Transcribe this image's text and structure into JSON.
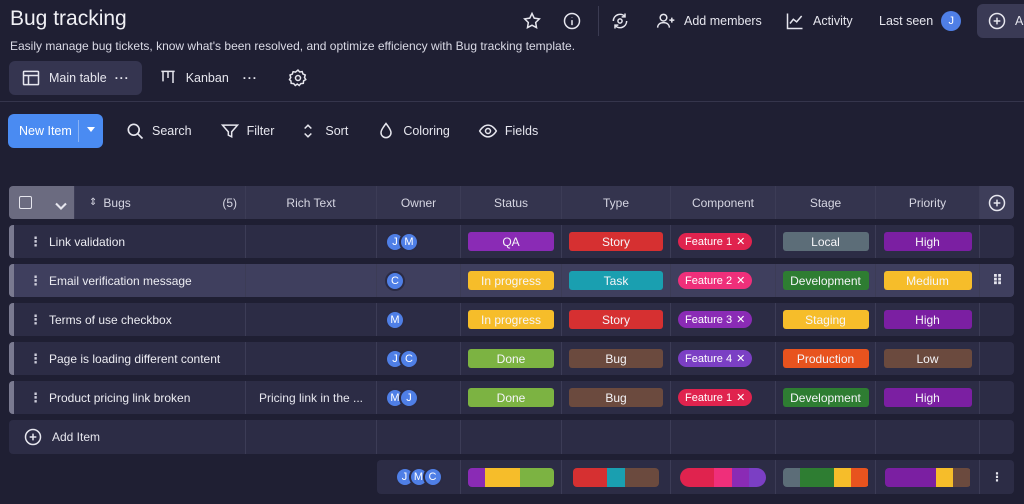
{
  "header": {
    "title": "Bug tracking",
    "subtitle": "Easily manage bug tickets, know what's been resolved, and optimize efficiency with Bug tracking template.",
    "add_members": "Add members",
    "activity": "Activity",
    "last_seen": "Last seen",
    "last_seen_avatar": "J",
    "add_button_partial": "Ac"
  },
  "views": {
    "main_table": "Main table",
    "kanban": "Kanban"
  },
  "toolbar": {
    "new_item": "New Item",
    "search": "Search",
    "filter": "Filter",
    "sort": "Sort",
    "coloring": "Coloring",
    "fields": "Fields"
  },
  "table": {
    "columns": {
      "bugs": "Bugs",
      "bugs_count": "(5)",
      "rich_text": "Rich Text",
      "owner": "Owner",
      "status": "Status",
      "type": "Type",
      "component": "Component",
      "stage": "Stage",
      "priority": "Priority"
    },
    "rows": [
      {
        "name": "Link validation",
        "rich": "",
        "owners": [
          "J",
          "M"
        ],
        "status": "QA",
        "type": "Story",
        "component": "Feature 1",
        "stage": "Local",
        "priority": "High"
      },
      {
        "name": "Email verification message",
        "rich": "",
        "owners": [
          "C"
        ],
        "status": "In progress",
        "type": "Task",
        "component": "Feature 2",
        "stage": "Development",
        "priority": "Medium"
      },
      {
        "name": "Terms of use checkbox",
        "rich": "",
        "owners": [
          "M"
        ],
        "status": "In progress",
        "type": "Story",
        "component": "Feature 3",
        "stage": "Staging",
        "priority": "High"
      },
      {
        "name": "Page is loading different content",
        "rich": "",
        "owners": [
          "J",
          "C"
        ],
        "status": "Done",
        "type": "Bug",
        "component": "Feature 4",
        "stage": "Production",
        "priority": "Low"
      },
      {
        "name": "Product pricing link broken",
        "rich": "Pricing link in the ...",
        "owners": [
          "M",
          "J"
        ],
        "status": "Done",
        "type": "Bug",
        "component": "Feature 1",
        "stage": "Development",
        "priority": "High"
      }
    ],
    "add_item": "Add Item",
    "footer_owners": [
      "J",
      "M",
      "C"
    ]
  },
  "colors": {
    "QA": "#8a2bb5",
    "In progress": "#f6bd2a",
    "Done": "#7cb342",
    "Story": "#d63031",
    "Task": "#1a9fb0",
    "Bug": "#6b4a3e",
    "Feature 1": "#e0234e",
    "Feature 2": "#ef2f7a",
    "Feature 3": "#8a2bb5",
    "Feature 4": "#7b3fc4",
    "Local": "#5c6d78",
    "Development": "#2e7d32",
    "Staging": "#f6bd2a",
    "Production": "#e8531e",
    "High": "#7b1fa2",
    "Medium": "#f6bd2a",
    "Low": "#6b4a3e",
    "accent": "#4a8bf2"
  }
}
